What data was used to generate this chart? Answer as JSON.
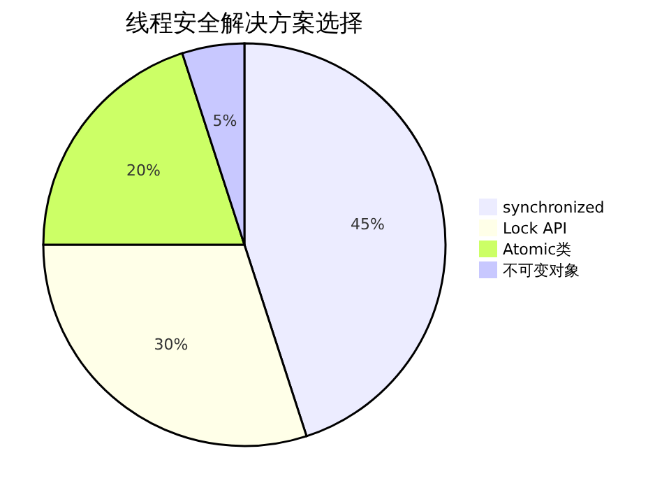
{
  "chart_data": {
    "type": "pie",
    "title": "线程安全解决方案选择",
    "categories": [
      "synchronized",
      "Lock API",
      "Atomic类",
      "不可变对象"
    ],
    "values": [
      45,
      30,
      20,
      5
    ],
    "colors": [
      "#ececff",
      "#ffffe8",
      "#ccff66",
      "#c8c8ff"
    ],
    "value_labels": [
      "45%",
      "30%",
      "20%",
      "5%"
    ],
    "legend": "right"
  }
}
